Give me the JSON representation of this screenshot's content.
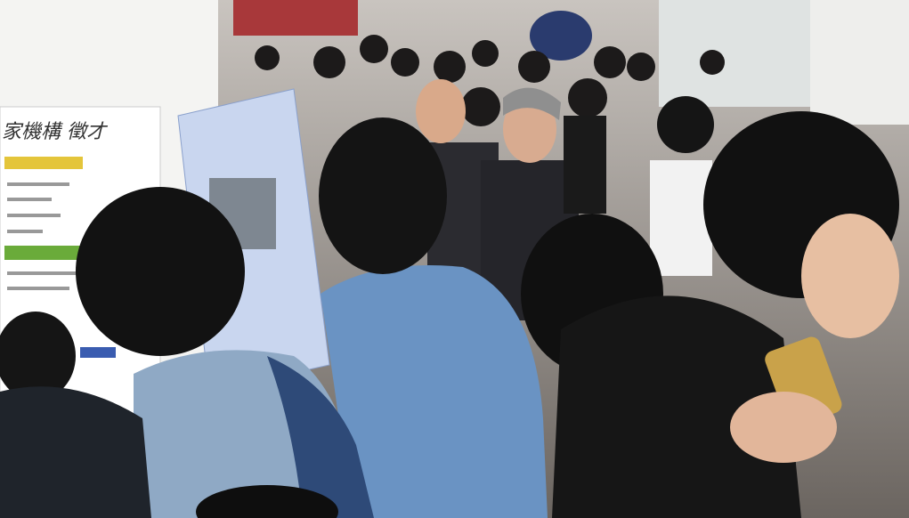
{
  "poster": {
    "text": "家機構 徵才"
  }
}
